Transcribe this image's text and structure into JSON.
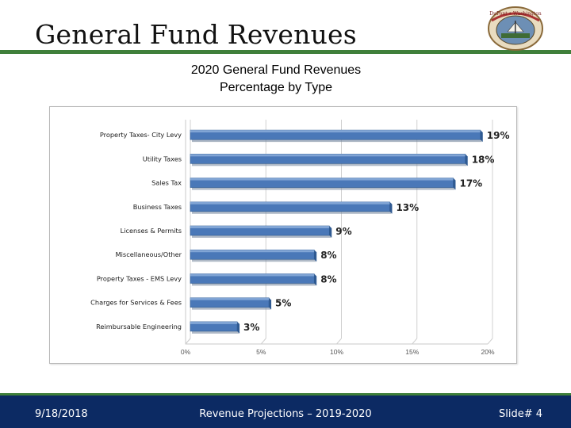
{
  "slide": {
    "title": "General Fund Revenues",
    "chart_title_line1": "2020 General Fund Revenues",
    "chart_title_line2": "Percentage by Type"
  },
  "logo": {
    "icon": "city-seal-logo",
    "text": "DuPont • Washington"
  },
  "footer": {
    "date": "9/18/2018",
    "center": "Revenue Projections – 2019-2020",
    "slide_number": "Slide# 4"
  },
  "colors": {
    "accent_green": "#3f7f3a",
    "footer_navy": "#0c2a63",
    "bar_blue": "#4a78b8"
  },
  "chart_data": {
    "type": "bar",
    "orientation": "horizontal",
    "title": "2020 General Fund Revenues Percentage by Type",
    "categories": [
      "Property Taxes- City Levy",
      "Utility Taxes",
      "Sales Tax",
      "Business Taxes",
      "Licenses & Permits",
      "Miscellaneous/Other",
      "Property Taxes - EMS Levy",
      "Charges for Services & Fees",
      "Reimbursable Engineering"
    ],
    "values": [
      19.2,
      18.2,
      17.4,
      13.2,
      9.2,
      8.2,
      8.2,
      5.2,
      3.1
    ],
    "data_labels": [
      "19%",
      "18%",
      "17%",
      "13%",
      "9%",
      "8%",
      "8%",
      "5%",
      "3%"
    ],
    "xlim": [
      0,
      20
    ],
    "x_ticks": [
      0,
      5,
      10,
      15,
      20
    ],
    "x_tick_labels": [
      "0%",
      "5%",
      "10%",
      "15%",
      "20%"
    ],
    "grid": true,
    "legend": "none"
  }
}
